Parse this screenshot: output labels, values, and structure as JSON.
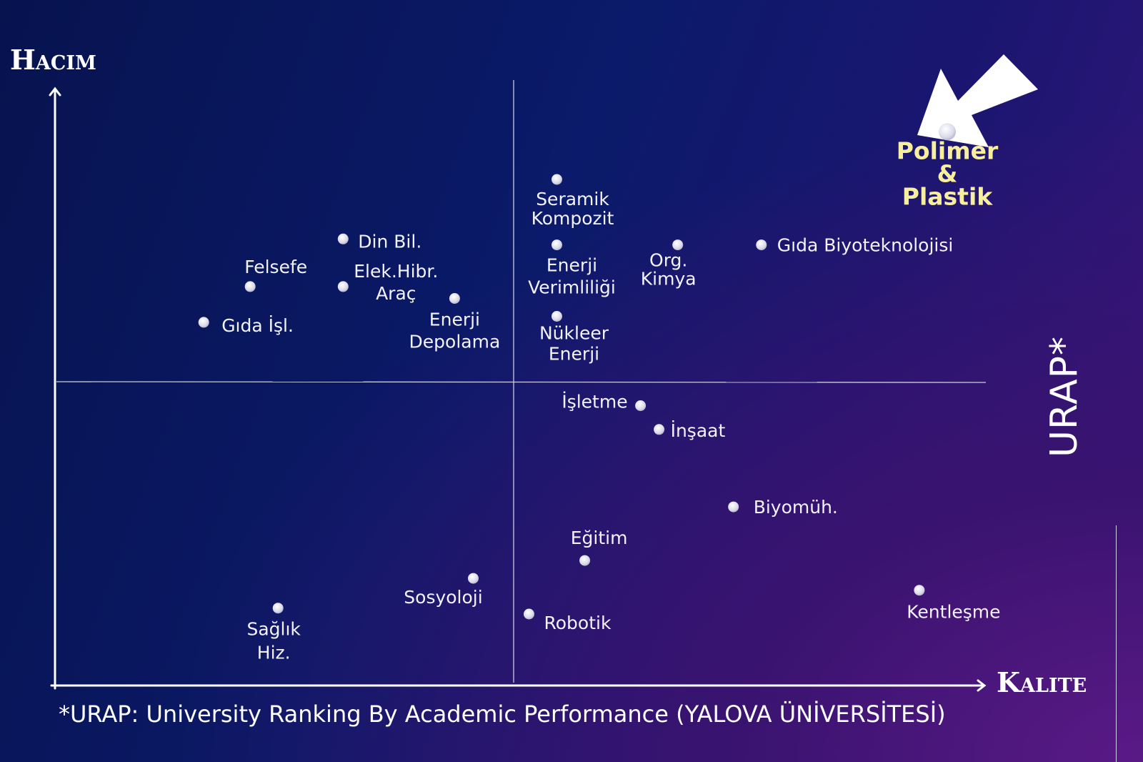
{
  "chart_data": {
    "type": "scatter",
    "title": "",
    "xlabel": "Kalite",
    "ylabel": "Hacim",
    "side_label": "URAP*",
    "footnote": "*URAP: University Ranking By Academic Performance  (YALOVA ÜNİVERSİTESİ)",
    "grid": false,
    "quadrant_dividers": true,
    "highlight_arrow": true,
    "colors": {
      "point": "#e6e6f2",
      "label": "#f2f2f8",
      "highlight_label": "#f8ef9e",
      "axis": "#ffffff",
      "divider": "#c9cbe0"
    },
    "points": [
      {
        "label": [
          "Polimer",
          "&",
          "Plastik"
        ],
        "x": 0.96,
        "y": 0.93,
        "highlight": true
      },
      {
        "label": [
          "Seramik",
          "Kompozit"
        ],
        "x": 0.54,
        "y": 0.85
      },
      {
        "label": [
          "Gıda Biyoteknolojisi"
        ],
        "x": 0.76,
        "y": 0.74
      },
      {
        "label": [
          "Org.",
          "Kimya"
        ],
        "x": 0.67,
        "y": 0.74
      },
      {
        "label": [
          "Enerji",
          "Verimliliği"
        ],
        "x": 0.54,
        "y": 0.74
      },
      {
        "label": [
          "Din Bil."
        ],
        "x": 0.31,
        "y": 0.75
      },
      {
        "label": [
          "Felsefe"
        ],
        "x": 0.21,
        "y": 0.67
      },
      {
        "label": [
          "Elek.Hibr.",
          "Araç"
        ],
        "x": 0.31,
        "y": 0.67
      },
      {
        "label": [
          "Enerji",
          "Depolama"
        ],
        "x": 0.43,
        "y": 0.65
      },
      {
        "label": [
          "Gıda İşl."
        ],
        "x": 0.16,
        "y": 0.61
      },
      {
        "label": [
          "Nükleer",
          "Enerji"
        ],
        "x": 0.54,
        "y": 0.62
      },
      {
        "label": [
          "İşletme"
        ],
        "x": 0.63,
        "y": 0.47
      },
      {
        "label": [
          "İnşaat"
        ],
        "x": 0.65,
        "y": 0.43
      },
      {
        "label": [
          "Biyomüh."
        ],
        "x": 0.73,
        "y": 0.3
      },
      {
        "label": [
          "Eğitim"
        ],
        "x": 0.57,
        "y": 0.21
      },
      {
        "label": [
          "Kentleşme"
        ],
        "x": 0.93,
        "y": 0.16
      },
      {
        "label": [
          "Sosyoloji"
        ],
        "x": 0.45,
        "y": 0.18
      },
      {
        "label": [
          "Robotik"
        ],
        "x": 0.51,
        "y": 0.12
      },
      {
        "label": [
          "Sağlık",
          "Hiz."
        ],
        "x": 0.24,
        "y": 0.13
      }
    ]
  }
}
